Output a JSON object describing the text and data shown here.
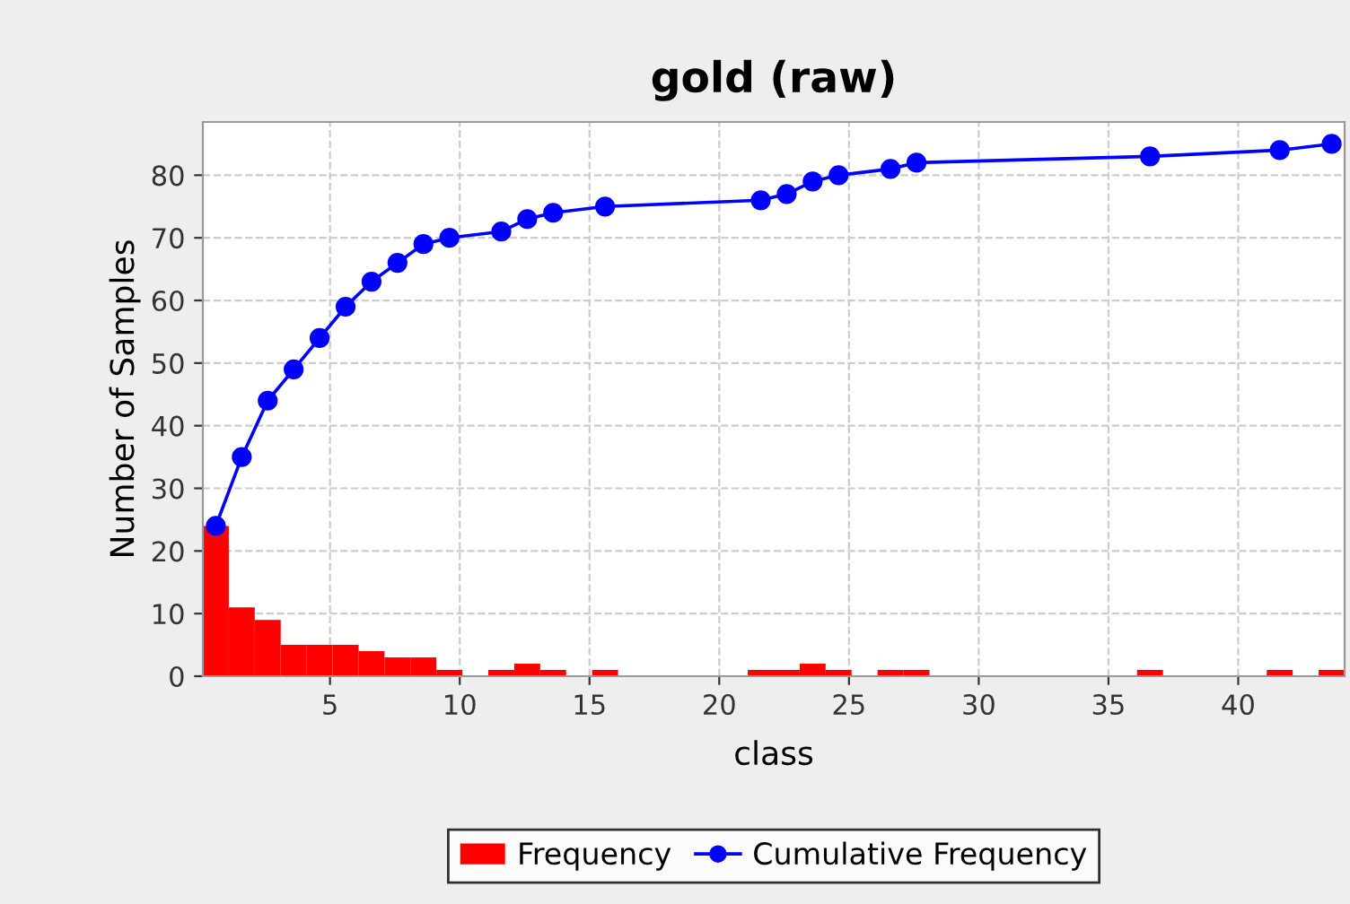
{
  "chart_data": {
    "type": "histogram",
    "title": "gold (raw)",
    "xlabel": "class",
    "ylabel": "Number of Samples",
    "bins": [
      0.1,
      1.1,
      2.1,
      3.1,
      4.1,
      5.1,
      6.1,
      7.1,
      8.1,
      9.1,
      10.1,
      11.1,
      12.1,
      13.1,
      14.1,
      15.1,
      16.1,
      17.1,
      18.1,
      19.1,
      20.1,
      21.1,
      22.1,
      23.1,
      24.1,
      25.1,
      26.1,
      27.1,
      28.1,
      29.1,
      30.1,
      31.1,
      32.1,
      33.1,
      34.1,
      35.1,
      36.1,
      37.1,
      38.1,
      39.1,
      40.1,
      41.1,
      42.1,
      43.1,
      44.1
    ],
    "series": [
      {
        "name": "Frequency",
        "color": "#ff0000",
        "values": [
          24,
          11,
          9,
          5,
          5,
          5,
          4,
          3,
          3,
          1,
          0,
          1,
          2,
          1,
          0,
          1,
          0,
          0,
          0,
          0,
          0,
          1,
          1,
          2,
          1,
          0,
          1,
          1,
          0,
          0,
          0,
          0,
          0,
          0,
          0,
          0,
          1,
          0,
          0,
          0,
          0,
          1,
          0,
          1
        ]
      },
      {
        "name": "Cumulative Frequency",
        "type": "line",
        "color": "#0000ff",
        "marker": "circle",
        "x": [
          0.6,
          1.6,
          2.6,
          3.6,
          4.6,
          5.6,
          6.6,
          7.6,
          8.6,
          9.6,
          11.6,
          12.6,
          13.6,
          15.6,
          21.6,
          22.6,
          23.6,
          24.6,
          26.6,
          27.6,
          36.6,
          41.6,
          43.6
        ],
        "values": [
          24,
          35,
          44,
          49,
          54,
          59,
          63,
          66,
          69,
          70,
          71,
          73,
          74,
          75,
          76,
          77,
          79,
          80,
          81,
          82,
          83,
          84,
          85
        ]
      }
    ],
    "xlim": [
      0.1,
      44.1
    ],
    "xticks": [
      5,
      10,
      15,
      20,
      25,
      30,
      35,
      40
    ],
    "ylim": [
      0,
      88.5
    ],
    "yticks": [
      0,
      10,
      20,
      30,
      40,
      50,
      60,
      70,
      80
    ],
    "grid": true,
    "legend": "bottom"
  }
}
